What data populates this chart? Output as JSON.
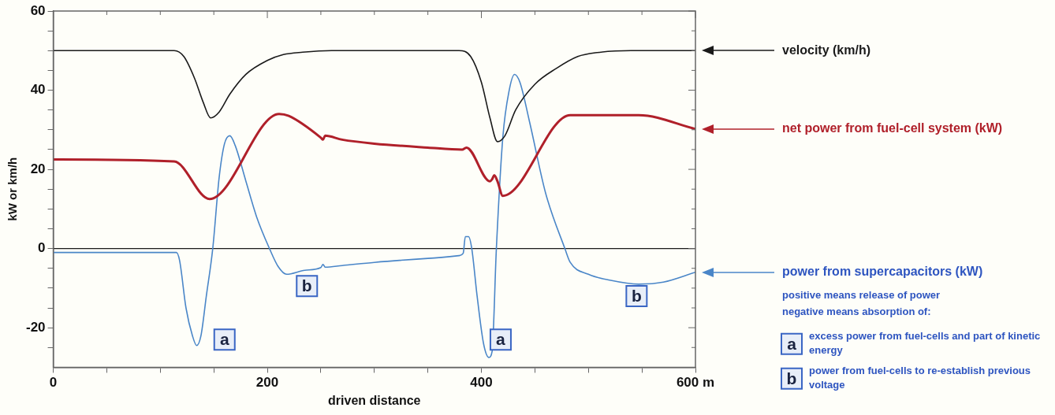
{
  "chart_data": {
    "type": "line",
    "xlabel": "driven distance",
    "ylabel": "kW or km/h",
    "xlim": [
      0,
      600
    ],
    "xticks": [
      0,
      {
        "value": 50,
        "label": null
      },
      {
        "value": 100,
        "label": null
      },
      {
        "value": 150,
        "label": null
      },
      200,
      {
        "value": 250,
        "label": null
      },
      {
        "value": 300,
        "label": null
      },
      {
        "value": 350,
        "label": null
      },
      400,
      {
        "value": 450,
        "label": null
      },
      {
        "value": 500,
        "label": null
      },
      {
        "value": 550,
        "label": null
      },
      {
        "value": 600,
        "label": "600 m"
      }
    ],
    "ylim": [
      -30,
      60
    ],
    "yticks": [
      {
        "value": -25,
        "label": null
      },
      -20,
      {
        "value": -15,
        "label": null
      },
      {
        "value": -10,
        "label": null
      },
      {
        "value": -5,
        "label": null
      },
      0,
      {
        "value": 5,
        "label": null
      },
      {
        "value": 10,
        "label": null
      },
      {
        "value": 15,
        "label": null
      },
      20,
      {
        "value": 25,
        "label": null
      },
      {
        "value": 30,
        "label": null
      },
      {
        "value": 35,
        "label": null
      },
      40,
      {
        "value": 45,
        "label": null
      },
      {
        "value": 50,
        "label": null
      },
      {
        "value": 55,
        "label": null
      },
      60
    ],
    "series": [
      {
        "name": "velocity (km/h)",
        "color": "#1a1a1a",
        "x": [
          0,
          113,
          122,
          132,
          140,
          147,
          155,
          165,
          180,
          200,
          215,
          233,
          260,
          300,
          379,
          390,
          400,
          408,
          415,
          422,
          432,
          450,
          470,
          490,
          508,
          540,
          600
        ],
        "values": [
          50,
          50,
          48.5,
          43,
          37,
          33,
          34.5,
          39,
          44,
          47.5,
          49,
          49.6,
          50,
          50,
          50,
          48.5,
          42,
          33,
          27,
          28.5,
          35,
          41.5,
          45.5,
          48.5,
          49.5,
          50,
          50
        ]
      },
      {
        "name": "net power from fuel-cell system (kW)",
        "color": "#b0202a",
        "x": [
          0,
          113,
          146,
          211,
          220,
          250,
          252,
          254,
          270,
          300,
          350,
          382,
          386,
          408,
          410,
          412,
          415,
          420,
          483,
          547,
          600
        ],
        "values": [
          22.5,
          22,
          12.5,
          34,
          33.5,
          28,
          27.5,
          28.5,
          27.5,
          26.5,
          25.5,
          25,
          25.5,
          17,
          17.5,
          18.5,
          17,
          13.3,
          33.7,
          33.7,
          30.2
        ]
      },
      {
        "name": "power from supercapacitors (kW)",
        "color": "#4a86c8",
        "x": [
          0,
          115,
          118,
          124,
          130,
          134,
          138,
          143,
          149,
          155,
          160,
          165,
          170,
          180,
          190,
          202,
          210,
          218,
          235,
          250,
          252,
          254,
          270,
          300,
          350,
          379,
          383,
          385,
          388,
          391,
          396,
          402,
          407,
          410,
          414,
          420,
          426,
          431,
          436,
          445,
          460,
          478,
          483,
          500,
          520,
          547,
          570,
          600
        ],
        "values": [
          -1,
          -1,
          -3,
          -15,
          -22,
          -24.5,
          -22,
          -12,
          0,
          18,
          26.5,
          28.5,
          26,
          17,
          8,
          0,
          -4.5,
          -6.5,
          -5.5,
          -4.8,
          -4,
          -4.7,
          -4.3,
          -3.5,
          -2.5,
          -1.8,
          -1.2,
          3,
          3,
          0,
          -12,
          -24,
          -27.5,
          -26,
          0,
          28,
          40,
          44,
          42,
          32,
          14,
          0,
          -3.5,
          -6.5,
          -8,
          -9,
          -8.5,
          -6
        ]
      }
    ],
    "ref_lines": [
      {
        "axis": "y",
        "value": 0,
        "color": "#1a1a1a"
      }
    ],
    "annotations": [
      {
        "text": "a",
        "x": 160,
        "y": -23
      },
      {
        "text": "b",
        "x": 237,
        "y": -9.5
      },
      {
        "text": "a",
        "x": 418,
        "y": -23
      },
      {
        "text": "b",
        "x": 545,
        "y": -12
      },
      "positive means release of power",
      "negative means absorption of:",
      "a",
      "excess power from fuel-cells and part of kinetic energy",
      "b",
      "power from fuel-cells to re-establish previous voltage"
    ],
    "legend": false
  }
}
